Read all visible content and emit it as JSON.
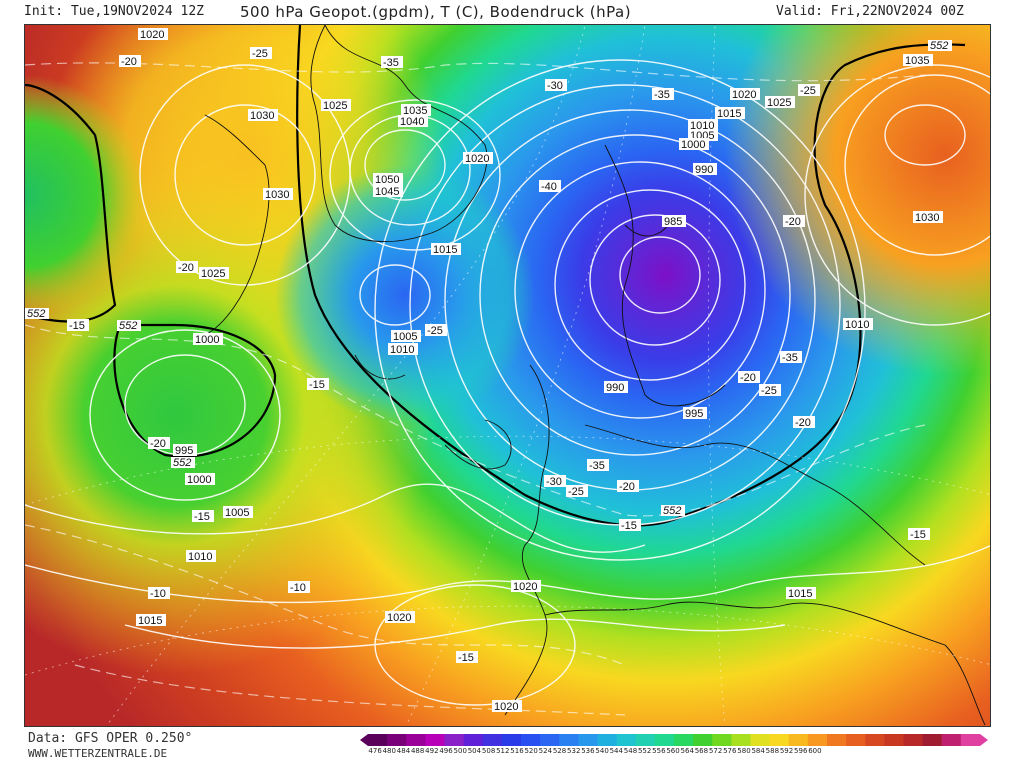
{
  "header": {
    "init": "Init: Tue,19NOV2024 12Z",
    "title": "500 hPa Geopot.(gpdm), T (C), Bodendruck (hPa)",
    "valid": "Valid: Fri,22NOV2024 00Z"
  },
  "footer": {
    "source": "Data: GFS OPER 0.250°",
    "site": "WWW.WETTERZENTRALE.DE"
  },
  "colorbar": {
    "labels": [
      "476",
      "480",
      "484",
      "488",
      "492",
      "496",
      "500",
      "504",
      "508",
      "512",
      "516",
      "520",
      "524",
      "528",
      "532",
      "536",
      "540",
      "544",
      "548",
      "552",
      "556",
      "560",
      "564",
      "568",
      "572",
      "576",
      "580",
      "584",
      "588",
      "592",
      "596",
      "600"
    ],
    "colors": [
      "#5a005a",
      "#7a007a",
      "#9a009a",
      "#b800b8",
      "#8a20c8",
      "#6020d8",
      "#4030e0",
      "#2a3ce8",
      "#2850f0",
      "#2a66f2",
      "#2a80f0",
      "#2898ec",
      "#20b0e0",
      "#20c4d0",
      "#20d0b0",
      "#20d890",
      "#28d860",
      "#40d030",
      "#70d820",
      "#a8e020",
      "#e0e020",
      "#f8d820",
      "#f8b820",
      "#f89820",
      "#f07820",
      "#e86020",
      "#d84820",
      "#c83820",
      "#b82828",
      "#a01c30",
      "#c02070",
      "#e040a0"
    ]
  },
  "map": {
    "pressure_labels": [
      "1020",
      "1025",
      "1030",
      "1035",
      "1040",
      "1045",
      "1050",
      "1015",
      "1010",
      "1005",
      "1000",
      "995",
      "990",
      "985",
      "1020",
      "1025",
      "1030",
      "1035",
      "1020",
      "1015",
      "1010",
      "1005",
      "1000",
      "995",
      "990",
      "1010",
      "1015",
      "1020",
      "1025",
      "1030",
      "1005",
      "1000",
      "1010",
      "1015",
      "1020",
      "1025"
    ],
    "temp_labels": [
      "-25",
      "-20",
      "-35",
      "-30",
      "-40",
      "-35",
      "-25",
      "-20",
      "-15",
      "-20",
      "-25",
      "-35",
      "-30",
      "-25",
      "-20",
      "-15",
      "-20",
      "-15",
      "-10",
      "-15",
      "-10",
      "-15",
      "-20",
      "-35",
      "-25",
      "-20",
      "-15"
    ],
    "geopot_labels": [
      "552",
      "552",
      "552",
      "552",
      "552"
    ]
  }
}
